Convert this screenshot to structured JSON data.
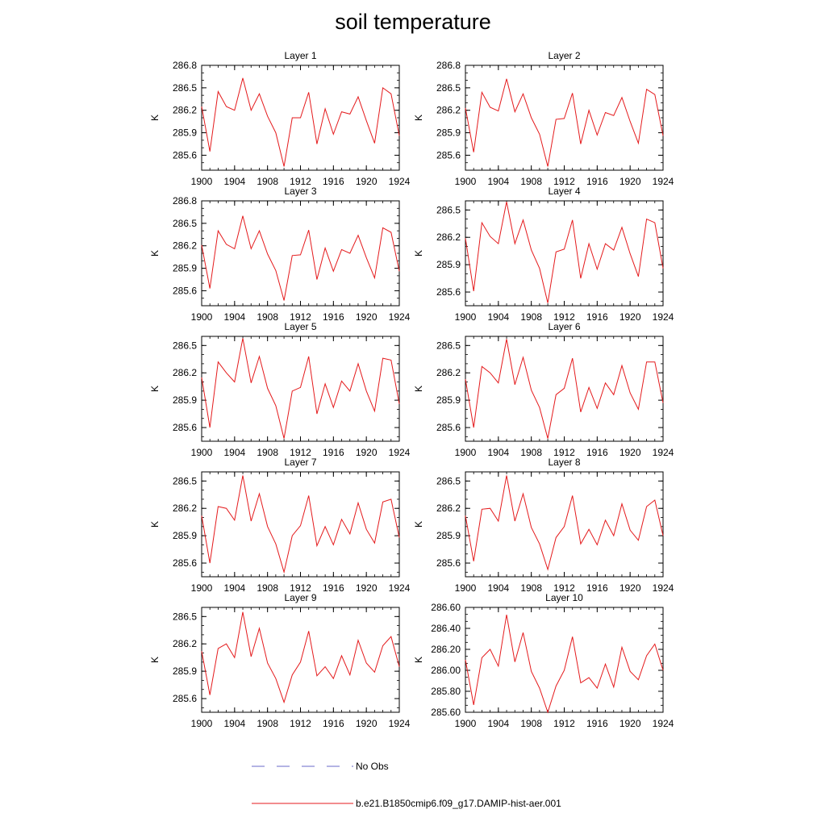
{
  "title": "soil temperature",
  "legend": {
    "items": [
      {
        "label": "No Obs",
        "color": "#6a6ac8",
        "style": "dashed"
      },
      {
        "label": "b.e21.B1850cmip6.f09_g17.DAMIP-hist-aer.001",
        "color": "#e41a1c",
        "style": "solid"
      }
    ]
  },
  "chart_data": [
    {
      "type": "line",
      "title": "Layer 1",
      "ylabel": "K",
      "xlim": [
        1900,
        1924
      ],
      "ylim": [
        285.4,
        286.8
      ],
      "xticks": [
        "1900",
        "1904",
        "1908",
        "1912",
        "1916",
        "1920",
        "1924"
      ],
      "yticks": [
        "285.6",
        "285.9",
        "286.2",
        "286.5",
        "286.8"
      ],
      "x": [
        1900,
        1901,
        1902,
        1903,
        1904,
        1905,
        1906,
        1907,
        1908,
        1909,
        1910,
        1911,
        1912,
        1913,
        1914,
        1915,
        1916,
        1917,
        1918,
        1919,
        1920,
        1921,
        1922,
        1923,
        1924
      ],
      "series": [
        {
          "color": "#e41a1c",
          "values": [
            286.25,
            285.65,
            286.45,
            286.25,
            286.2,
            286.63,
            286.2,
            286.42,
            286.12,
            285.9,
            285.45,
            286.1,
            286.1,
            286.44,
            285.75,
            286.22,
            285.88,
            286.18,
            286.15,
            286.38,
            286.06,
            285.76,
            286.5,
            286.42,
            285.86
          ]
        }
      ]
    },
    {
      "type": "line",
      "title": "Layer 2",
      "ylabel": "K",
      "xlim": [
        1900,
        1924
      ],
      "ylim": [
        285.4,
        286.8
      ],
      "xticks": [
        "1900",
        "1904",
        "1908",
        "1912",
        "1916",
        "1920",
        "1924"
      ],
      "yticks": [
        "285.6",
        "285.9",
        "286.2",
        "286.5",
        "286.8"
      ],
      "x": [
        1900,
        1901,
        1902,
        1903,
        1904,
        1905,
        1906,
        1907,
        1908,
        1909,
        1910,
        1911,
        1912,
        1913,
        1914,
        1915,
        1916,
        1917,
        1918,
        1919,
        1920,
        1921,
        1922,
        1923,
        1924
      ],
      "series": [
        {
          "color": "#e41a1c",
          "values": [
            286.23,
            285.64,
            286.44,
            286.24,
            286.19,
            286.62,
            286.18,
            286.42,
            286.1,
            285.88,
            285.45,
            286.08,
            286.09,
            286.43,
            285.75,
            286.2,
            285.87,
            286.17,
            286.13,
            286.37,
            286.05,
            285.76,
            286.48,
            286.41,
            285.86
          ]
        }
      ]
    },
    {
      "type": "line",
      "title": "Layer 3",
      "ylabel": "K",
      "xlim": [
        1900,
        1924
      ],
      "ylim": [
        285.4,
        286.8
      ],
      "xticks": [
        "1900",
        "1904",
        "1908",
        "1912",
        "1916",
        "1920",
        "1924"
      ],
      "yticks": [
        "285.6",
        "285.9",
        "286.2",
        "286.5",
        "286.8"
      ],
      "x": [
        1900,
        1901,
        1902,
        1903,
        1904,
        1905,
        1906,
        1907,
        1908,
        1909,
        1910,
        1911,
        1912,
        1913,
        1914,
        1915,
        1916,
        1917,
        1918,
        1919,
        1920,
        1921,
        1922,
        1923,
        1924
      ],
      "series": [
        {
          "color": "#e41a1c",
          "values": [
            286.21,
            285.63,
            286.4,
            286.22,
            286.16,
            286.6,
            286.16,
            286.4,
            286.09,
            285.87,
            285.47,
            286.07,
            286.08,
            286.41,
            285.75,
            286.17,
            285.86,
            286.15,
            286.1,
            286.34,
            286.04,
            285.77,
            286.44,
            286.38,
            285.86
          ]
        }
      ]
    },
    {
      "type": "line",
      "title": "Layer 4",
      "ylabel": "K",
      "xlim": [
        1900,
        1924
      ],
      "ylim": [
        285.45,
        286.6
      ],
      "xticks": [
        "1900",
        "1904",
        "1908",
        "1912",
        "1916",
        "1920",
        "1924"
      ],
      "yticks": [
        "285.6",
        "285.9",
        "286.2",
        "286.5"
      ],
      "x": [
        1900,
        1901,
        1902,
        1903,
        1904,
        1905,
        1906,
        1907,
        1908,
        1909,
        1910,
        1911,
        1912,
        1913,
        1914,
        1915,
        1916,
        1917,
        1918,
        1919,
        1920,
        1921,
        1922,
        1923,
        1924
      ],
      "series": [
        {
          "color": "#e41a1c",
          "values": [
            286.19,
            285.61,
            286.36,
            286.21,
            286.13,
            286.59,
            286.13,
            286.39,
            286.06,
            285.86,
            285.48,
            286.04,
            286.07,
            286.39,
            285.75,
            286.13,
            285.85,
            286.13,
            286.06,
            286.31,
            286.02,
            285.77,
            286.4,
            286.36,
            285.86
          ]
        }
      ]
    },
    {
      "type": "line",
      "title": "Layer 5",
      "ylabel": "K",
      "xlim": [
        1900,
        1924
      ],
      "ylim": [
        285.45,
        286.6
      ],
      "xticks": [
        "1900",
        "1904",
        "1908",
        "1912",
        "1916",
        "1920",
        "1924"
      ],
      "yticks": [
        "285.6",
        "285.9",
        "286.2",
        "286.5"
      ],
      "x": [
        1900,
        1901,
        1902,
        1903,
        1904,
        1905,
        1906,
        1907,
        1908,
        1909,
        1910,
        1911,
        1912,
        1913,
        1914,
        1915,
        1916,
        1917,
        1918,
        1919,
        1920,
        1921,
        1922,
        1923,
        1924
      ],
      "series": [
        {
          "color": "#e41a1c",
          "values": [
            286.15,
            285.6,
            286.32,
            286.2,
            286.1,
            286.58,
            286.09,
            286.38,
            286.03,
            285.84,
            285.48,
            286.0,
            286.04,
            286.38,
            285.75,
            286.08,
            285.82,
            286.11,
            286.0,
            286.3,
            286.0,
            285.78,
            286.36,
            286.34,
            285.86
          ]
        }
      ]
    },
    {
      "type": "line",
      "title": "Layer 6",
      "ylabel": "K",
      "xlim": [
        1900,
        1924
      ],
      "ylim": [
        285.45,
        286.6
      ],
      "xticks": [
        "1900",
        "1904",
        "1908",
        "1912",
        "1916",
        "1920",
        "1924"
      ],
      "yticks": [
        "285.6",
        "285.9",
        "286.2",
        "286.5"
      ],
      "x": [
        1900,
        1901,
        1902,
        1903,
        1904,
        1905,
        1906,
        1907,
        1908,
        1909,
        1910,
        1911,
        1912,
        1913,
        1914,
        1915,
        1916,
        1917,
        1918,
        1919,
        1920,
        1921,
        1922,
        1923,
        1924
      ],
      "series": [
        {
          "color": "#e41a1c",
          "values": [
            286.13,
            285.6,
            286.27,
            286.2,
            286.09,
            286.57,
            286.07,
            286.37,
            286.01,
            285.82,
            285.48,
            285.96,
            286.03,
            286.36,
            285.77,
            286.04,
            285.81,
            286.09,
            285.96,
            286.28,
            285.98,
            285.8,
            286.32,
            286.32,
            285.87
          ]
        }
      ]
    },
    {
      "type": "line",
      "title": "Layer 7",
      "ylabel": "K",
      "xlim": [
        1900,
        1924
      ],
      "ylim": [
        285.45,
        286.6
      ],
      "xticks": [
        "1900",
        "1904",
        "1908",
        "1912",
        "1916",
        "1920",
        "1924"
      ],
      "yticks": [
        "285.6",
        "285.9",
        "286.2",
        "286.5"
      ],
      "x": [
        1900,
        1901,
        1902,
        1903,
        1904,
        1905,
        1906,
        1907,
        1908,
        1909,
        1910,
        1911,
        1912,
        1913,
        1914,
        1915,
        1916,
        1917,
        1918,
        1919,
        1920,
        1921,
        1922,
        1923,
        1924
      ],
      "series": [
        {
          "color": "#e41a1c",
          "values": [
            286.12,
            285.6,
            286.22,
            286.2,
            286.07,
            286.56,
            286.06,
            286.36,
            286.0,
            285.81,
            285.5,
            285.9,
            286.01,
            286.34,
            285.79,
            286.0,
            285.8,
            286.08,
            285.92,
            286.26,
            285.97,
            285.82,
            286.27,
            286.3,
            285.88
          ]
        }
      ]
    },
    {
      "type": "line",
      "title": "Layer 8",
      "ylabel": "K",
      "xlim": [
        1900,
        1924
      ],
      "ylim": [
        285.45,
        286.6
      ],
      "xticks": [
        "1900",
        "1904",
        "1908",
        "1912",
        "1916",
        "1920",
        "1924"
      ],
      "yticks": [
        "285.6",
        "285.9",
        "286.2",
        "286.5"
      ],
      "x": [
        1900,
        1901,
        1902,
        1903,
        1904,
        1905,
        1906,
        1907,
        1908,
        1909,
        1910,
        1911,
        1912,
        1913,
        1914,
        1915,
        1916,
        1917,
        1918,
        1919,
        1920,
        1921,
        1922,
        1923,
        1924
      ],
      "series": [
        {
          "color": "#e41a1c",
          "values": [
            286.12,
            285.62,
            286.19,
            286.2,
            286.06,
            286.56,
            286.06,
            286.36,
            285.99,
            285.81,
            285.53,
            285.88,
            286.0,
            286.34,
            285.81,
            285.97,
            285.8,
            286.07,
            285.9,
            286.25,
            285.96,
            285.85,
            286.22,
            286.29,
            285.9
          ]
        }
      ]
    },
    {
      "type": "line",
      "title": "Layer 9",
      "ylabel": "K",
      "xlim": [
        1900,
        1924
      ],
      "ylim": [
        285.45,
        286.6
      ],
      "xticks": [
        "1900",
        "1904",
        "1908",
        "1912",
        "1916",
        "1920",
        "1924"
      ],
      "yticks": [
        "285.6",
        "285.9",
        "286.2",
        "286.5"
      ],
      "x": [
        1900,
        1901,
        1902,
        1903,
        1904,
        1905,
        1906,
        1907,
        1908,
        1909,
        1910,
        1911,
        1912,
        1913,
        1914,
        1915,
        1916,
        1917,
        1918,
        1919,
        1920,
        1921,
        1922,
        1923,
        1924
      ],
      "series": [
        {
          "color": "#e41a1c",
          "values": [
            286.12,
            285.64,
            286.15,
            286.2,
            286.05,
            286.55,
            286.06,
            286.37,
            285.99,
            285.82,
            285.56,
            285.86,
            286.0,
            286.34,
            285.85,
            285.95,
            285.82,
            286.07,
            285.86,
            286.24,
            285.99,
            285.89,
            286.18,
            286.28,
            285.95
          ]
        }
      ]
    },
    {
      "type": "line",
      "title": "Layer 10",
      "ylabel": "K",
      "xlim": [
        1900,
        1924
      ],
      "ylim": [
        285.6,
        286.6
      ],
      "xticks": [
        "1900",
        "1904",
        "1908",
        "1912",
        "1916",
        "1920",
        "1924"
      ],
      "yticks": [
        "285.60",
        "285.80",
        "286.00",
        "286.20",
        "286.40",
        "286.60"
      ],
      "x": [
        1900,
        1901,
        1902,
        1903,
        1904,
        1905,
        1906,
        1907,
        1908,
        1909,
        1910,
        1911,
        1912,
        1913,
        1914,
        1915,
        1916,
        1917,
        1918,
        1919,
        1920,
        1921,
        1922,
        1923,
        1924
      ],
      "series": [
        {
          "color": "#e41a1c",
          "values": [
            286.1,
            285.67,
            286.12,
            286.2,
            286.04,
            286.53,
            286.08,
            286.36,
            285.99,
            285.83,
            285.6,
            285.85,
            286.0,
            286.32,
            285.88,
            285.93,
            285.83,
            286.06,
            285.84,
            286.22,
            285.99,
            285.91,
            286.14,
            286.25,
            286.0
          ]
        }
      ]
    }
  ]
}
